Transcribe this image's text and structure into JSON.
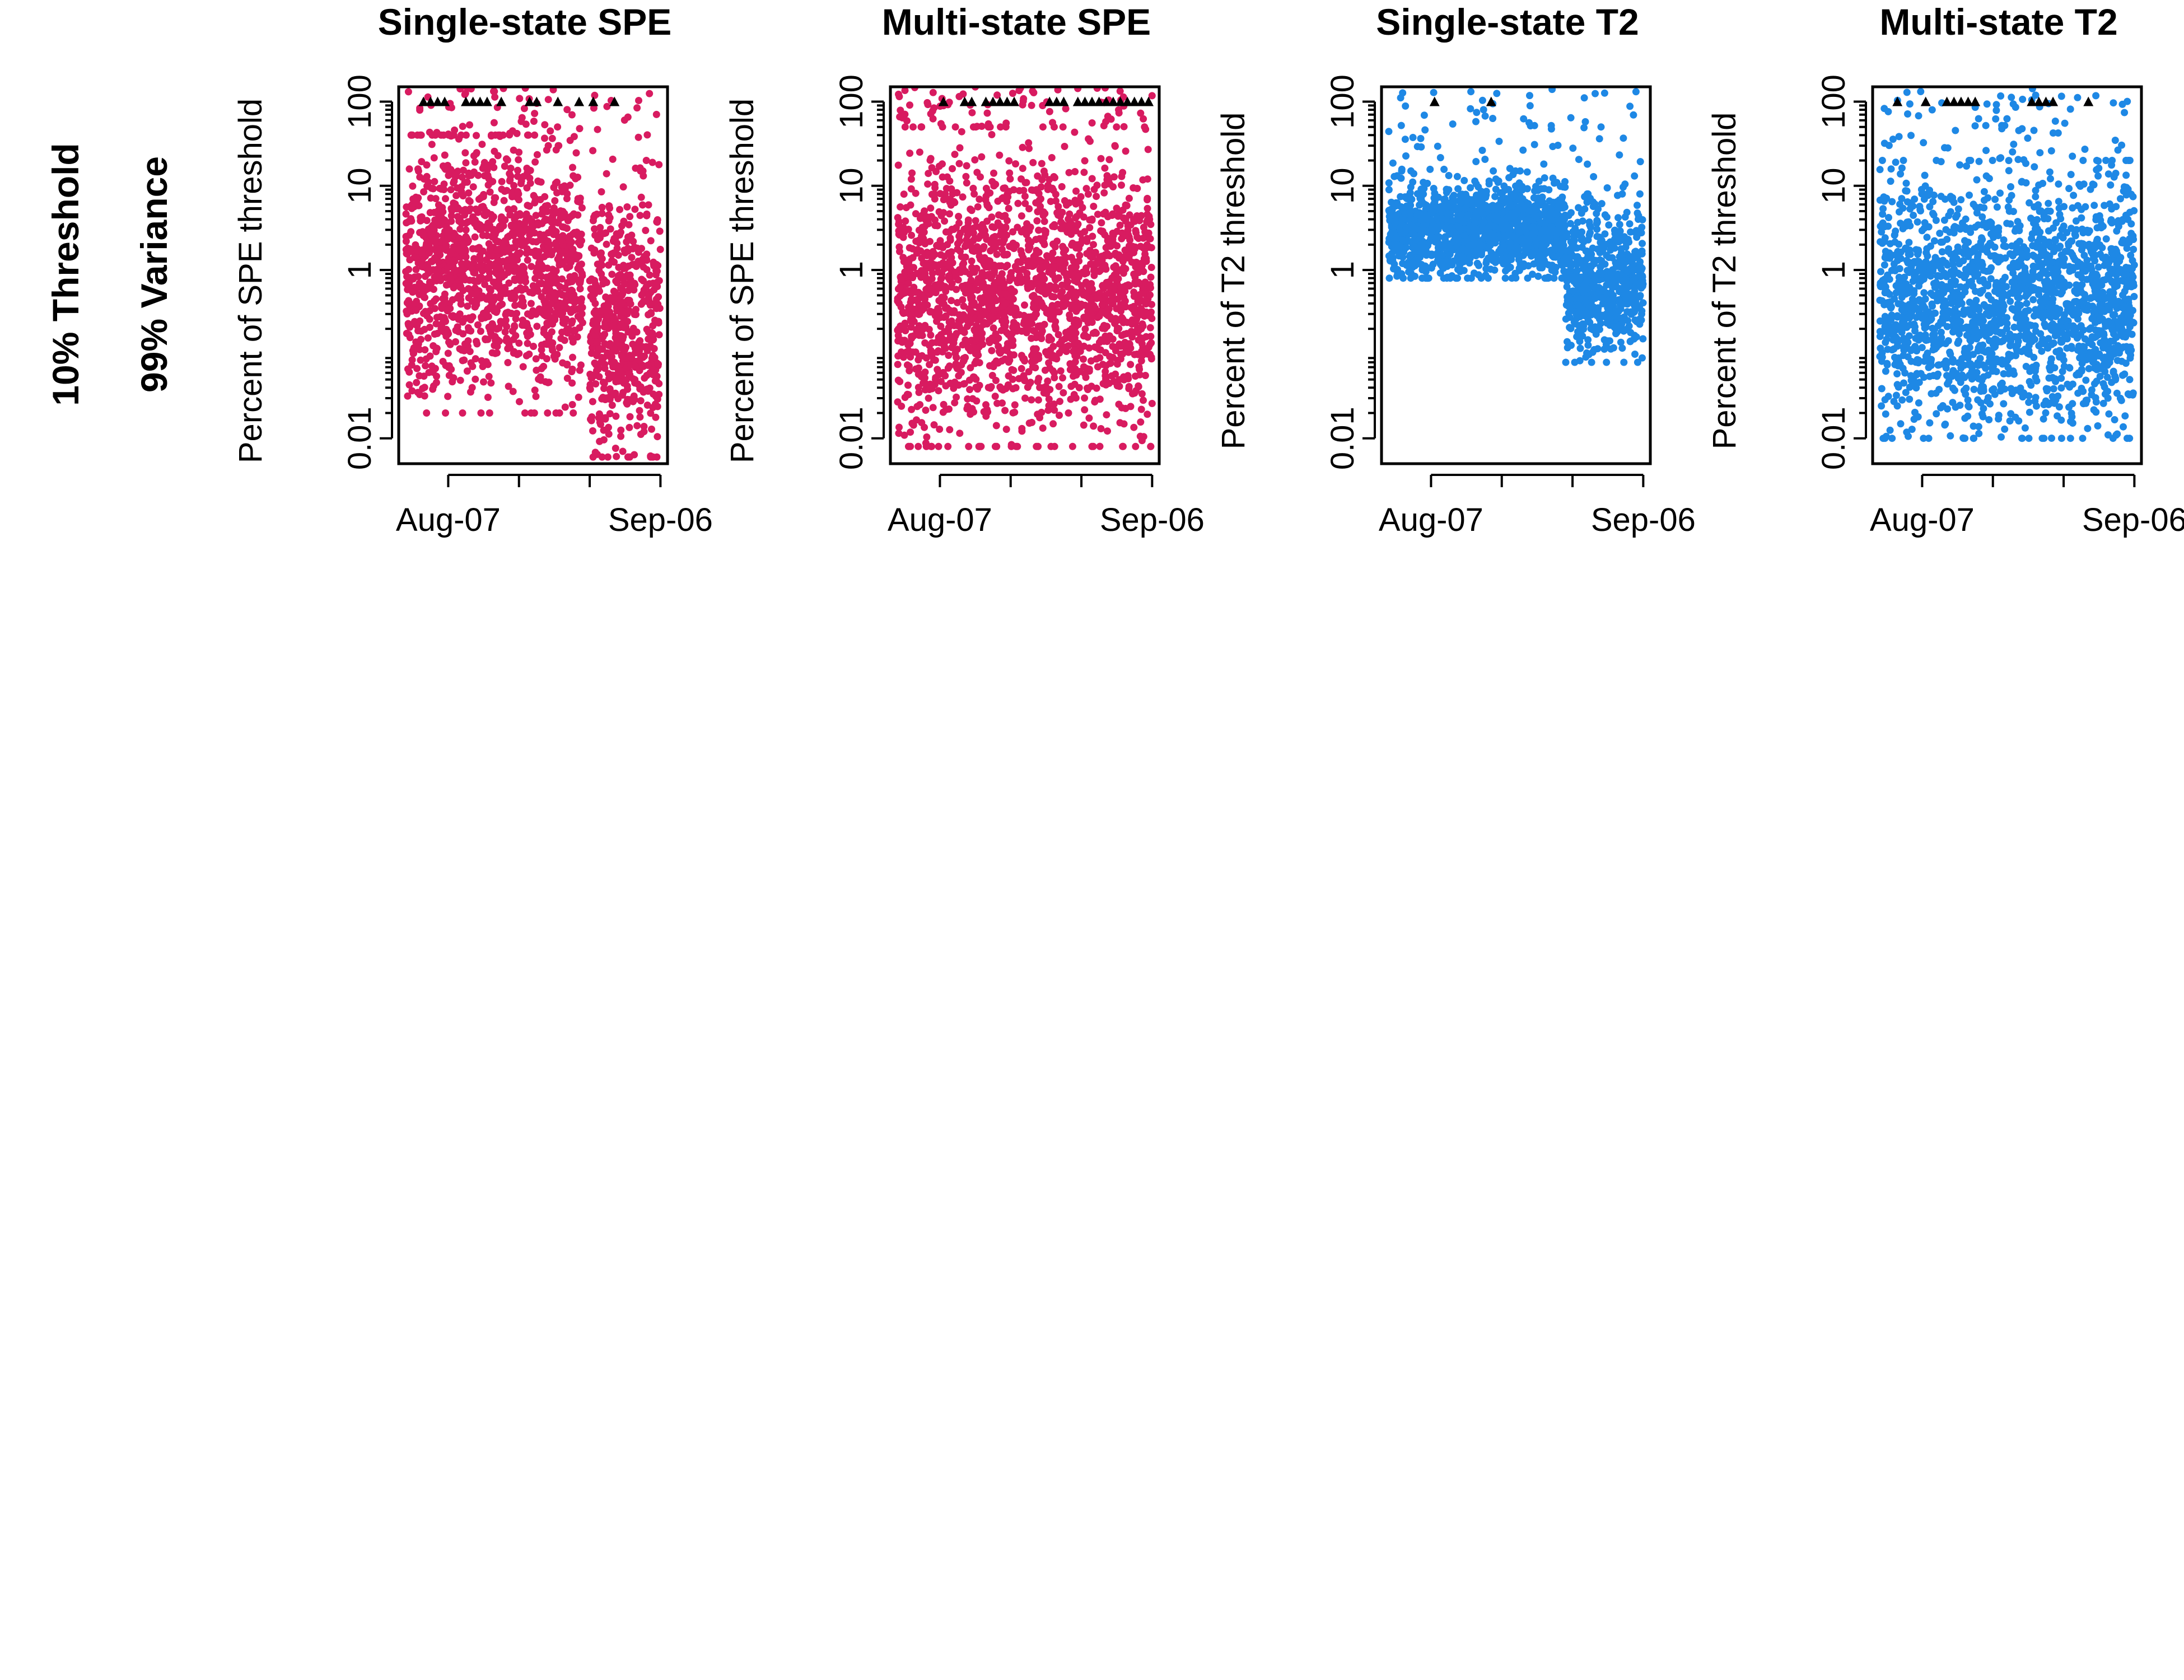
{
  "row_labels": {
    "threshold": "10% Threshold",
    "variance": "99% Variance"
  },
  "colors": {
    "spe": "#D81B60",
    "t2": "#1E88E5",
    "marker": "#000000"
  },
  "chart_data": [
    {
      "type": "scatter",
      "title": "Single-state SPE",
      "ylabel": "Percent of SPE threshold",
      "xlabel": "",
      "x_axis": "date",
      "xlim": [
        "2021-07-31",
        "2021-09-07"
      ],
      "x_ticks": [
        "2021-08-07",
        "2021-08-17",
        "2021-08-27",
        "2021-09-06"
      ],
      "x_tick_labels": [
        "Aug-07",
        "",
        "",
        "Sep-06"
      ],
      "y_scale": "log",
      "ylim": [
        0.005,
        150
      ],
      "y_ticks": [
        0.01,
        1,
        10,
        100
      ],
      "y_tick_labels": [
        "0.01",
        "1",
        "10",
        "100"
      ],
      "grid": false,
      "color": "#D81B60",
      "series": [
        {
          "segments": [
            {
              "from": "2021-08-01",
              "to": "2021-08-21",
              "median": 1.2,
              "low": 0.02,
              "high": 40
            },
            {
              "from": "2021-08-21",
              "to": "2021-08-26",
              "median": 1.0,
              "low": 0.02,
              "high": 30
            },
            {
              "from": "2021-08-27",
              "to": "2021-09-06",
              "median": 0.2,
              "low": 0.006,
              "high": 15
            }
          ]
        }
      ],
      "flag_markers": [
        "2021-08-03",
        "2021-08-04",
        "2021-08-05",
        "2021-08-06",
        "2021-08-09",
        "2021-08-10",
        "2021-08-11",
        "2021-08-12",
        "2021-08-14",
        "2021-08-18",
        "2021-08-19",
        "2021-08-22",
        "2021-08-25",
        "2021-08-27",
        "2021-08-30"
      ],
      "flag_level": 100
    },
    {
      "type": "scatter",
      "title": "Multi-state SPE",
      "ylabel": "Percent of SPE threshold",
      "xlabel": "",
      "x_axis": "date",
      "xlim": [
        "2021-07-31",
        "2021-09-07"
      ],
      "x_ticks": [
        "2021-08-07",
        "2021-08-17",
        "2021-08-27",
        "2021-09-06"
      ],
      "x_tick_labels": [
        "Aug-07",
        "",
        "",
        "Sep-06"
      ],
      "y_scale": "log",
      "ylim": [
        0.005,
        150
      ],
      "y_ticks": [
        0.01,
        1,
        10,
        100
      ],
      "y_tick_labels": [
        "0.01",
        "1",
        "10",
        "100"
      ],
      "grid": false,
      "color": "#D81B60",
      "series": [
        {
          "segments": [
            {
              "from": "2021-08-01",
              "to": "2021-09-06",
              "median": 0.5,
              "low": 0.008,
              "high": 50
            }
          ]
        }
      ],
      "flag_markers": [
        "2021-08-07",
        "2021-08-10",
        "2021-08-11",
        "2021-08-13",
        "2021-08-14",
        "2021-08-15",
        "2021-08-16",
        "2021-08-17",
        "2021-08-22",
        "2021-08-23",
        "2021-08-24",
        "2021-08-26",
        "2021-08-27",
        "2021-08-28",
        "2021-08-29",
        "2021-08-30",
        "2021-08-31",
        "2021-09-01",
        "2021-09-02",
        "2021-09-03",
        "2021-09-04",
        "2021-09-05"
      ],
      "flag_level": 100
    },
    {
      "type": "scatter",
      "title": "Single-state T2",
      "ylabel": "Percent of T2 threshold",
      "xlabel": "",
      "x_axis": "date",
      "xlim": [
        "2021-07-31",
        "2021-09-07"
      ],
      "x_ticks": [
        "2021-08-07",
        "2021-08-17",
        "2021-08-27",
        "2021-09-06"
      ],
      "x_tick_labels": [
        "Aug-07",
        "",
        "",
        "Sep-06"
      ],
      "y_scale": "log",
      "ylim": [
        0.005,
        150
      ],
      "y_ticks": [
        0.01,
        1,
        10,
        100
      ],
      "y_tick_labels": [
        "0.01",
        "1",
        "10",
        "100"
      ],
      "grid": false,
      "color": "#1E88E5",
      "series": [
        {
          "segments": [
            {
              "from": "2021-08-01",
              "to": "2021-08-26",
              "median": 3.0,
              "low": 0.8,
              "high": 15
            },
            {
              "from": "2021-08-26",
              "to": "2021-09-06",
              "median": 0.7,
              "low": 0.08,
              "high": 8
            }
          ]
        }
      ],
      "flag_markers": [
        "2021-08-07",
        "2021-08-15"
      ],
      "flag_level": 100
    },
    {
      "type": "scatter",
      "title": "Multi-state T2",
      "ylabel": "Percent of T2 threshold",
      "xlabel": "",
      "x_axis": "date",
      "xlim": [
        "2021-07-31",
        "2021-09-07"
      ],
      "x_ticks": [
        "2021-08-07",
        "2021-08-17",
        "2021-08-27",
        "2021-09-06"
      ],
      "x_tick_labels": [
        "Aug-07",
        "",
        "",
        "Sep-06"
      ],
      "y_scale": "log",
      "ylim": [
        0.005,
        150
      ],
      "y_ticks": [
        0.01,
        1,
        10,
        100
      ],
      "y_tick_labels": [
        "0.01",
        "1",
        "10",
        "100"
      ],
      "grid": false,
      "color": "#1E88E5",
      "series": [
        {
          "segments": [
            {
              "from": "2021-08-01",
              "to": "2021-09-06",
              "median": 0.4,
              "low": 0.01,
              "high": 20
            }
          ]
        }
      ],
      "flag_markers": [
        "2021-08-03",
        "2021-08-07",
        "2021-08-10",
        "2021-08-11",
        "2021-08-12",
        "2021-08-13",
        "2021-08-14",
        "2021-08-22",
        "2021-08-23",
        "2021-08-24",
        "2021-08-25",
        "2021-08-30"
      ],
      "flag_level": 100
    }
  ]
}
